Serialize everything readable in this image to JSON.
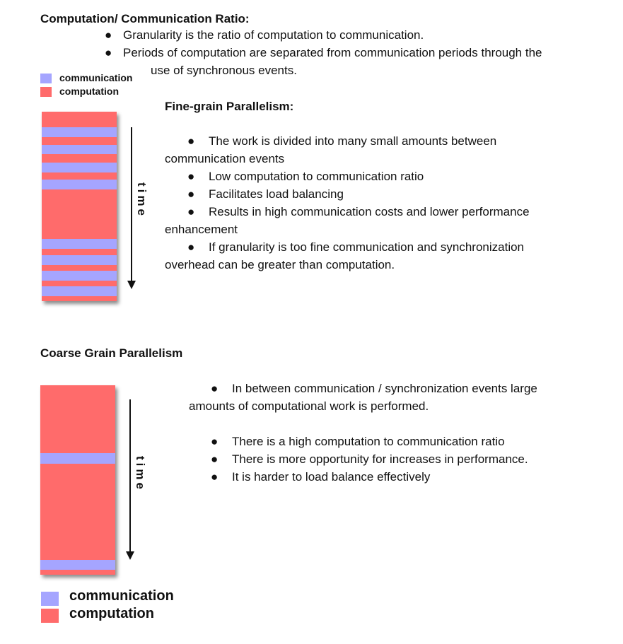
{
  "header": {
    "title": "Computation/ Communication Ratio:",
    "bullets": [
      "Granularity is the ratio of computation to communication.",
      "Periods of computation are separated from communication periods through the",
      "use of synchronous events."
    ]
  },
  "legend_small": {
    "communication": "communication",
    "computation": "computation"
  },
  "fine_grain": {
    "heading": "Fine-grain Parallelism:",
    "lines": [
      "The work is divided into many small amounts between",
      "communication events",
      "Low computation to communication ratio",
      "Facilitates load balancing",
      "Results in high communication costs and lower performance",
      "enhancement",
      "If granularity is too fine communication and synchronization",
      "overhead can be greater than computation."
    ],
    "time_label": "time"
  },
  "coarse_grain": {
    "heading": "Coarse Grain Parallelism",
    "lines": [
      "In between communication / synchronization events large",
      "amounts of computational work is performed.",
      "There is a high computation to communication ratio",
      "There is more opportunity for increases in performance.",
      "It is harder to load balance effectively"
    ],
    "time_label": "time"
  },
  "legend_large": {
    "communication": "communication",
    "computation": "computation"
  },
  "bullet_glyph": "●",
  "colors": {
    "communication": "#a5a5ff",
    "computation": "#ff6b6b"
  }
}
